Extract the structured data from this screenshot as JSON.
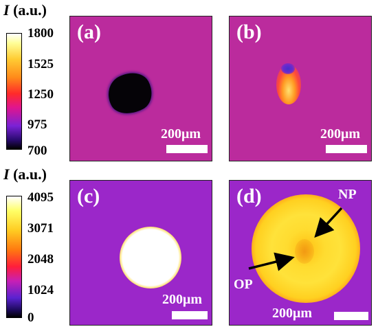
{
  "colorbars": [
    {
      "title_symbol": "I",
      "title_unit": " (a.u.)",
      "ticks": [
        "1800",
        "1525",
        "1250",
        "975",
        "700"
      ]
    },
    {
      "title_symbol": "I",
      "title_unit": " (a.u.)",
      "ticks": [
        "4095",
        "3071",
        "2048",
        "1024",
        "0"
      ]
    }
  ],
  "panels": {
    "a": {
      "label": "(a)",
      "scale_text": "200μm"
    },
    "b": {
      "label": "(b)",
      "scale_text": "200μm"
    },
    "c": {
      "label": "(c)",
      "scale_text": "200μm"
    },
    "d": {
      "label": "(d)",
      "scale_text": "200μm",
      "annotations": {
        "np": "NP",
        "op": "OP"
      }
    }
  },
  "colors": {
    "panel_top_background": "#bb2b9d",
    "panel_bottom_background": "#9b27c9",
    "annotation_arrow": "#000000",
    "label_text": "#ffffff"
  }
}
